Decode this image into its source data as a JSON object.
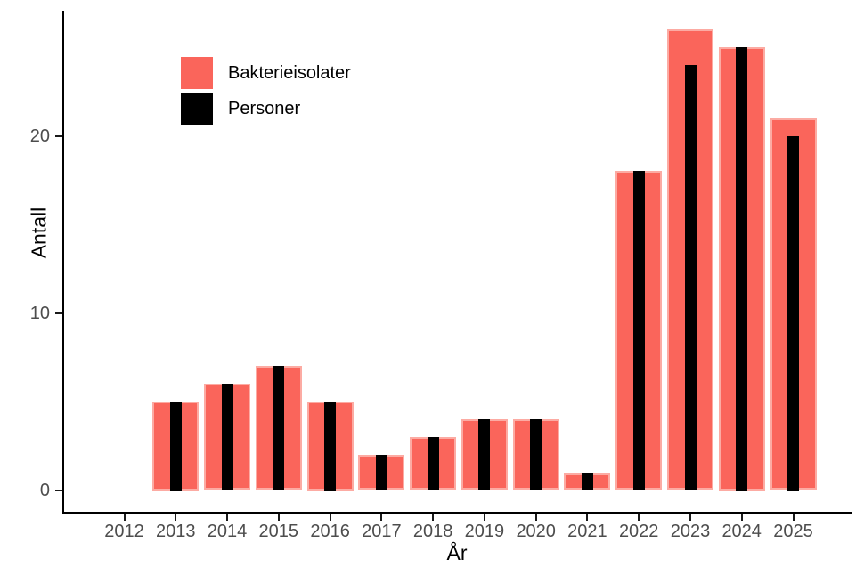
{
  "chart_data": {
    "type": "bar",
    "title": "",
    "xlabel": "År",
    "ylabel": "Antall",
    "categories": [
      "2012",
      "2013",
      "2014",
      "2015",
      "2016",
      "2017",
      "2018",
      "2019",
      "2020",
      "2021",
      "2022",
      "2023",
      "2024",
      "2025"
    ],
    "series": [
      {
        "name": "Bakterieisolater",
        "color": "#fa655b",
        "values": [
          0,
          5,
          6,
          7,
          5,
          2,
          3,
          4,
          4,
          1,
          18,
          26,
          25,
          21
        ]
      },
      {
        "name": "Personer",
        "color": "#000000",
        "values": [
          0,
          5,
          6,
          7,
          5,
          2,
          3,
          4,
          4,
          1,
          18,
          24,
          25,
          20
        ]
      }
    ],
    "yticks": [
      0,
      10,
      20
    ],
    "ylim": [
      0,
      27
    ],
    "grid": "off",
    "legend_position": "top-left-inside",
    "colors": {
      "bar_primary": "#fa655b",
      "bar_primary_border": "#fcaba3",
      "bar_secondary": "#000000",
      "tick_label": "#4d4d4d",
      "axis": "#000000"
    }
  }
}
